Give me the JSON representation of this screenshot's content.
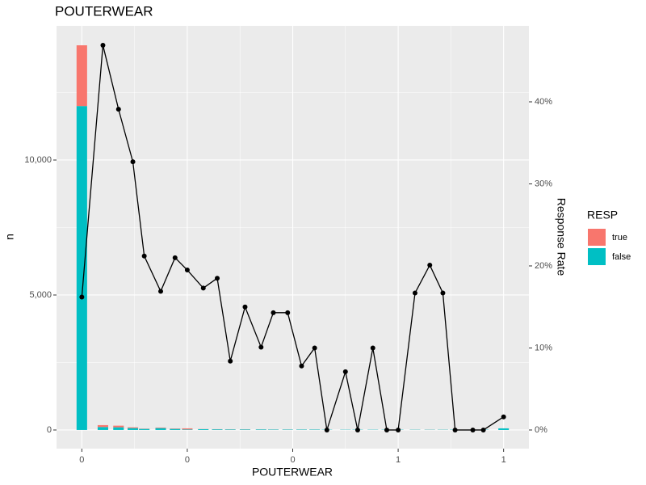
{
  "chart_data": {
    "type": "bar",
    "title": "POUTERWEAR",
    "x_label": "POUTERWEAR",
    "y_label": "n",
    "y2_label": "Response Rate",
    "legend_title": "RESP",
    "x": [
      0,
      0.05,
      0.087,
      0.121,
      0.148,
      0.187,
      0.221,
      0.25,
      0.288,
      0.321,
      0.352,
      0.387,
      0.425,
      0.454,
      0.488,
      0.521,
      0.552,
      0.581,
      0.625,
      0.654,
      0.69,
      0.723,
      0.75,
      0.79,
      0.825,
      0.856,
      0.885,
      0.927,
      0.952,
      1
    ],
    "bar_width": 0.025,
    "series": [
      {
        "name": "true",
        "color": "#F8766D",
        "values": [
          2250,
          70,
          60,
          30,
          10,
          20,
          15,
          40,
          5,
          5,
          5,
          5,
          3,
          3,
          3,
          2,
          2,
          0,
          1,
          0,
          1,
          0,
          0,
          2,
          3,
          2,
          0,
          0,
          0,
          1
        ]
      },
      {
        "name": "false",
        "color": "#00BFC4",
        "values": [
          12000,
          110,
          100,
          70,
          40,
          70,
          40,
          20,
          30,
          25,
          20,
          20,
          20,
          15,
          15,
          15,
          15,
          10,
          10,
          10,
          10,
          10,
          10,
          10,
          10,
          10,
          10,
          10,
          10,
          60
        ]
      }
    ],
    "line": {
      "color": "#000000",
      "axis": "y2",
      "values": [
        16.2,
        46.9,
        39.1,
        32.7,
        21.2,
        16.9,
        21.0,
        19.5,
        17.3,
        18.5,
        8.4,
        15.0,
        10.1,
        14.3,
        14.3,
        7.8,
        10.0,
        0,
        7.1,
        0,
        10.0,
        0,
        0,
        16.7,
        20.1,
        16.7,
        0,
        0,
        0,
        1.6
      ]
    },
    "xlim": [
      -0.06,
      1.06
    ],
    "xticks": [
      0,
      {
        "value": 0.25,
        "label": "0"
      },
      {
        "value": 0.5,
        "label": "0"
      },
      {
        "value": 0.75,
        "label": "1"
      },
      1
    ],
    "ylim": [
      -690,
      14970
    ],
    "yticks": [
      0,
      {
        "value": 5000,
        "label": "5,000"
      },
      {
        "value": 10000,
        "label": "10,000"
      }
    ],
    "y2lim": [
      -2.27,
      49.26
    ],
    "y2ticks": [
      {
        "value": 0,
        "label": "0%"
      },
      {
        "value": 10,
        "label": "10%"
      },
      {
        "value": 20,
        "label": "20%"
      },
      {
        "value": 30,
        "label": "30%"
      },
      {
        "value": 40,
        "label": "40%"
      }
    ],
    "grid": true
  }
}
